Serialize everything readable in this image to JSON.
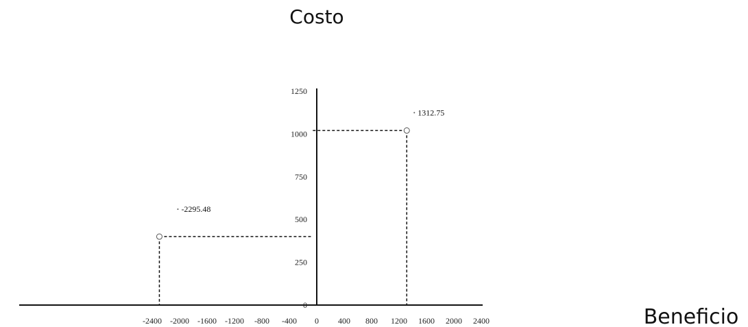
{
  "chart_data": {
    "type": "scatter",
    "xlabel": "Beneficio",
    "ylabel": "Costo",
    "xlim": [
      -2400,
      2400
    ],
    "ylim": [
      0,
      1250
    ],
    "x_ticks": [
      -2400,
      -2000,
      -1600,
      -1200,
      -800,
      -400,
      0,
      400,
      800,
      1200,
      1600,
      2000,
      2400
    ],
    "y_ticks": [
      0,
      250,
      500,
      750,
      1000,
      1250
    ],
    "x_tick_labels": [
      "-2400",
      "-2000",
      "-1600",
      "-1200",
      "-800",
      "-400",
      "0",
      "400",
      "800",
      "1200",
      "1600",
      "2000",
      "2400"
    ],
    "y_tick_labels": [
      "0",
      "250",
      "500",
      "750",
      "1000",
      "1250"
    ],
    "points": [
      {
        "x": -2295.48,
        "y": 400,
        "label": "-2295.48"
      },
      {
        "x": 1312.75,
        "y": 1020,
        "label": "1312.75"
      }
    ],
    "grid": false,
    "guide_lines": "dashed"
  }
}
